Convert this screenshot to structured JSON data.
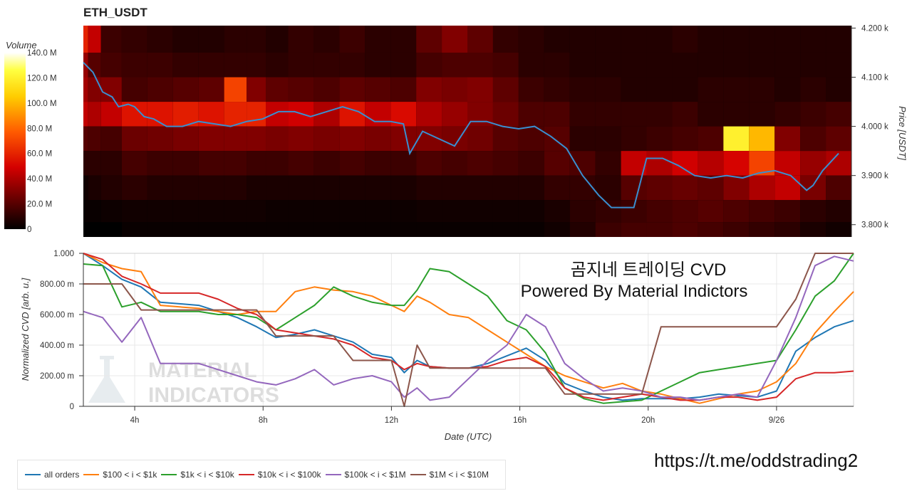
{
  "title": "ETH_USDT",
  "overlay": {
    "line1": "곰지네 트레이딩 CVD",
    "line2": "Powered By Material Indictors"
  },
  "watermark": {
    "line1": "MATERIAL",
    "line2": "INDICATORS"
  },
  "footer_url": "https://t.me/oddstrading2",
  "colorbar": {
    "title": "Volume",
    "ticks": [
      "140.0 M",
      "120.0 M",
      "100.0 M",
      "80.0 M",
      "60.0 M",
      "40.0 M",
      "20.0 M",
      "0"
    ]
  },
  "price_axis": {
    "label": "Price [USDT]",
    "ticks": [
      "4.200 k",
      "4.100 k",
      "4.000 k",
      "3.900 k",
      "3.800 k"
    ]
  },
  "cvd_axis": {
    "label": "Normalized CVD [arb. u.]",
    "ticks": [
      "1.000",
      "800.00 m",
      "600.00 m",
      "400.00 m",
      "200.00 m",
      "0"
    ]
  },
  "x_axis": {
    "label": "Date (UTC)",
    "ticks": [
      "4h",
      "8h",
      "12h",
      "16h",
      "20h",
      "9/26"
    ]
  },
  "legend": [
    {
      "label": "all orders",
      "color": "#1f77b4"
    },
    {
      "label": "$100 < i < $1k",
      "color": "#ff7f0e"
    },
    {
      "label": "$1k < i < $10k",
      "color": "#2ca02c"
    },
    {
      "label": "$10k < i < $100k",
      "color": "#d62728"
    },
    {
      "label": "$100k < i < $1M",
      "color": "#9467bd"
    },
    {
      "label": "$1M < i < $10M",
      "color": "#8c564b"
    }
  ],
  "chart_data": [
    {
      "type": "heatmap",
      "title": "ETH_USDT",
      "ylabel": "Price [USDT]",
      "ylim": [
        3775,
        4205
      ],
      "colorbar_range": [
        0,
        140
      ],
      "colorbar_unit": "M",
      "price_bands": [
        4175,
        4125,
        4075,
        4025,
        3975,
        3925,
        3875,
        3825,
        3785
      ],
      "x": [
        2.4,
        2.7,
        3.2,
        4.0,
        4.8,
        5.6,
        6.4,
        7.2,
        7.8,
        8.4,
        9.2,
        10.0,
        10.8,
        11.6,
        12.4,
        13.2,
        14.0,
        14.8,
        15.6,
        16.4,
        17.2,
        18.0,
        18.8,
        19.6,
        20.4,
        21.2,
        22.0,
        22.8,
        23.6,
        24.4,
        25.2,
        26.0
      ],
      "volume_m": [
        [
          60,
          45,
          14,
          12,
          10,
          8,
          8,
          10,
          10,
          8,
          12,
          10,
          14,
          10,
          10,
          22,
          30,
          22,
          12,
          10,
          8,
          8,
          8,
          8,
          8,
          10,
          8,
          8,
          8,
          8,
          8,
          8
        ],
        [
          35,
          20,
          16,
          14,
          14,
          12,
          12,
          12,
          12,
          10,
          12,
          12,
          12,
          10,
          10,
          16,
          18,
          18,
          16,
          10,
          10,
          8,
          8,
          8,
          8,
          8,
          8,
          8,
          8,
          8,
          8,
          8
        ],
        [
          38,
          30,
          30,
          16,
          18,
          20,
          22,
          70,
          30,
          22,
          20,
          18,
          22,
          20,
          18,
          30,
          28,
          30,
          22,
          14,
          12,
          10,
          10,
          8,
          8,
          8,
          10,
          10,
          10,
          8,
          10,
          8
        ],
        [
          45,
          40,
          45,
          55,
          55,
          58,
          55,
          60,
          60,
          45,
          48,
          40,
          55,
          45,
          52,
          40,
          35,
          30,
          25,
          18,
          18,
          12,
          12,
          12,
          12,
          14,
          10,
          10,
          10,
          12,
          14,
          16
        ],
        [
          20,
          18,
          16,
          25,
          26,
          28,
          30,
          30,
          30,
          28,
          30,
          28,
          30,
          28,
          30,
          30,
          28,
          26,
          20,
          18,
          20,
          10,
          10,
          12,
          14,
          16,
          18,
          120,
          100,
          30,
          18,
          22
        ],
        [
          10,
          10,
          10,
          16,
          14,
          14,
          16,
          16,
          14,
          14,
          16,
          14,
          16,
          14,
          14,
          18,
          16,
          18,
          16,
          14,
          20,
          18,
          12,
          45,
          40,
          48,
          42,
          50,
          70,
          45,
          35,
          40
        ],
        [
          4,
          6,
          8,
          10,
          8,
          8,
          8,
          8,
          6,
          6,
          6,
          6,
          6,
          6,
          6,
          8,
          8,
          8,
          8,
          8,
          12,
          12,
          10,
          20,
          22,
          24,
          22,
          30,
          40,
          45,
          28,
          18
        ],
        [
          2,
          2,
          3,
          4,
          4,
          4,
          4,
          4,
          4,
          3,
          3,
          3,
          3,
          3,
          3,
          4,
          4,
          4,
          4,
          4,
          6,
          10,
          12,
          14,
          16,
          18,
          20,
          18,
          16,
          14,
          10,
          8
        ],
        [
          0,
          0,
          0,
          2,
          2,
          2,
          2,
          2,
          2,
          2,
          2,
          2,
          2,
          2,
          2,
          2,
          2,
          2,
          2,
          2,
          4,
          8,
          14,
          16,
          16,
          18,
          16,
          14,
          12,
          10,
          6,
          4
        ]
      ],
      "price_x": [
        2.4,
        2.7,
        3.0,
        3.3,
        3.5,
        3.8,
        4.0,
        4.3,
        4.6,
        5.0,
        5.5,
        6.0,
        6.5,
        7.0,
        7.5,
        8.0,
        8.5,
        9.0,
        9.5,
        10.0,
        10.5,
        11.0,
        11.5,
        12.0,
        12.4,
        12.6,
        13.0,
        13.5,
        14.0,
        14.5,
        15.0,
        15.5,
        16.0,
        16.5,
        17.0,
        17.5,
        18.0,
        18.5,
        18.9,
        19.2,
        19.6,
        20.0,
        20.5,
        21.0,
        21.5,
        22.0,
        22.5,
        23.0,
        23.5,
        24.0,
        24.5,
        25.0,
        25.2,
        25.5,
        26.0
      ],
      "price": [
        4130,
        4110,
        4070,
        4060,
        4040,
        4045,
        4040,
        4020,
        4015,
        4000,
        4000,
        4010,
        4005,
        4000,
        4010,
        4015,
        4030,
        4030,
        4020,
        4030,
        4040,
        4030,
        4010,
        4010,
        4005,
        3945,
        3990,
        3975,
        3960,
        4010,
        4010,
        4000,
        3995,
        4000,
        3980,
        3955,
        3900,
        3860,
        3835,
        3835,
        3835,
        3935,
        3935,
        3920,
        3900,
        3895,
        3900,
        3895,
        3905,
        3910,
        3900,
        3870,
        3880,
        3910,
        3945
      ]
    },
    {
      "type": "line",
      "xlabel": "Date (UTC)",
      "ylabel": "Normalized CVD [arb. u.]",
      "xlim": [
        2.4,
        26.4
      ],
      "ylim": [
        0,
        1.0
      ],
      "x_ticks": {
        "4h": 4,
        "8h": 8,
        "12h": 12,
        "16h": 16,
        "20h": 20,
        "9/26": 24
      },
      "x": [
        2.4,
        3.0,
        3.6,
        4.2,
        4.8,
        5.4,
        6.0,
        6.6,
        7.2,
        7.8,
        8.4,
        9.0,
        9.6,
        10.2,
        10.8,
        11.4,
        12.0,
        12.4,
        12.8,
        13.2,
        13.8,
        14.4,
        15.0,
        15.6,
        16.2,
        16.8,
        17.4,
        18.0,
        18.6,
        19.2,
        19.8,
        20.4,
        21.0,
        21.6,
        22.2,
        22.8,
        23.4,
        24.0,
        24.6,
        25.2,
        25.8,
        26.4
      ],
      "series": [
        {
          "name": "all orders",
          "values": [
            1.0,
            0.92,
            0.83,
            0.78,
            0.68,
            0.67,
            0.66,
            0.62,
            0.58,
            0.52,
            0.45,
            0.47,
            0.5,
            0.46,
            0.42,
            0.34,
            0.32,
            0.22,
            0.3,
            0.26,
            0.25,
            0.25,
            0.28,
            0.33,
            0.38,
            0.3,
            0.15,
            0.1,
            0.06,
            0.04,
            0.05,
            0.05,
            0.05,
            0.06,
            0.08,
            0.07,
            0.06,
            0.1,
            0.36,
            0.45,
            0.52,
            0.56
          ]
        },
        {
          "name": "$100 < i < $1k",
          "values": [
            1.0,
            0.94,
            0.9,
            0.88,
            0.66,
            0.65,
            0.64,
            0.62,
            0.6,
            0.62,
            0.62,
            0.75,
            0.78,
            0.76,
            0.75,
            0.72,
            0.66,
            0.62,
            0.72,
            0.68,
            0.6,
            0.58,
            0.5,
            0.42,
            0.34,
            0.26,
            0.2,
            0.16,
            0.12,
            0.15,
            0.1,
            0.08,
            0.05,
            0.02,
            0.05,
            0.08,
            0.1,
            0.16,
            0.28,
            0.48,
            0.62,
            0.75
          ]
        },
        {
          "name": "$1k < i < $10k",
          "values": [
            0.93,
            0.92,
            0.65,
            0.68,
            0.62,
            0.62,
            0.62,
            0.6,
            0.6,
            0.58,
            0.5,
            0.58,
            0.66,
            0.78,
            0.72,
            0.68,
            0.66,
            0.66,
            0.76,
            0.9,
            0.88,
            0.8,
            0.72,
            0.56,
            0.5,
            0.35,
            0.12,
            0.05,
            0.02,
            0.03,
            0.04,
            0.1,
            0.16,
            0.22,
            0.24,
            0.26,
            0.28,
            0.3,
            0.5,
            0.72,
            0.82,
            1.0
          ]
        },
        {
          "name": "$10k < i < $100k",
          "values": [
            1.0,
            0.96,
            0.85,
            0.8,
            0.74,
            0.74,
            0.74,
            0.7,
            0.64,
            0.6,
            0.5,
            0.48,
            0.46,
            0.44,
            0.4,
            0.32,
            0.3,
            0.24,
            0.28,
            0.26,
            0.25,
            0.25,
            0.26,
            0.3,
            0.32,
            0.26,
            0.12,
            0.06,
            0.04,
            0.06,
            0.08,
            0.06,
            0.04,
            0.04,
            0.06,
            0.06,
            0.04,
            0.06,
            0.18,
            0.22,
            0.22,
            0.23
          ]
        },
        {
          "name": "$100k < i < $1M",
          "values": [
            0.62,
            0.58,
            0.42,
            0.58,
            0.28,
            0.28,
            0.28,
            0.24,
            0.2,
            0.16,
            0.14,
            0.18,
            0.24,
            0.14,
            0.18,
            0.2,
            0.16,
            0.06,
            0.12,
            0.04,
            0.06,
            0.18,
            0.3,
            0.4,
            0.6,
            0.52,
            0.28,
            0.18,
            0.1,
            0.12,
            0.1,
            0.06,
            0.06,
            0.04,
            0.06,
            0.08,
            0.06,
            0.3,
            0.58,
            0.92,
            0.98,
            0.95
          ]
        },
        {
          "name": "$1M < i < $10M",
          "values": [
            0.8,
            0.8,
            0.8,
            0.63,
            0.63,
            0.63,
            0.63,
            0.63,
            0.63,
            0.63,
            0.46,
            0.46,
            0.46,
            0.46,
            0.3,
            0.3,
            0.3,
            0.0,
            0.4,
            0.25,
            0.25,
            0.25,
            0.25,
            0.25,
            0.25,
            0.25,
            0.08,
            0.08,
            0.08,
            0.08,
            0.08,
            0.52,
            0.52,
            0.52,
            0.52,
            0.52,
            0.52,
            0.52,
            0.7,
            1.0,
            1.0,
            1.0
          ]
        }
      ]
    }
  ]
}
